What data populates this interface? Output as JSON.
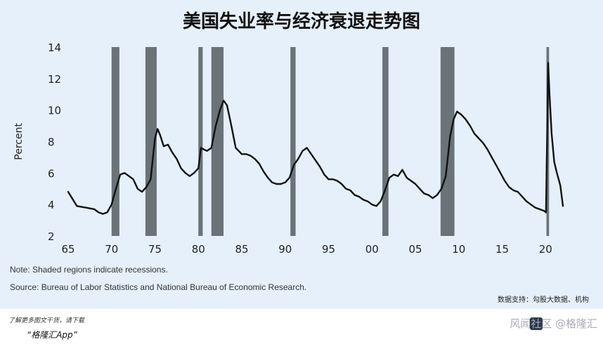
{
  "title": "美国失业率与经济衰退走势图",
  "note": "Note: Shaded regions indicate recessions.",
  "source": "Source: Bureau of Labor Statistics and National Bureau of Economic Research.",
  "data_support": "数据支持：勾股大数据、机构",
  "footer": {
    "line1": "了解更多图文干货，请下载",
    "line2": "“格隆汇App”",
    "watermark": "风闻社区 @格隆汇"
  },
  "colors": {
    "background": "#e6f0fb",
    "line": "#111111",
    "recession": "#6a7378"
  },
  "chart_data": {
    "type": "line",
    "ylabel": "Percent",
    "xlim": [
      1965,
      2022
    ],
    "ylim": [
      2,
      14
    ],
    "yticks": [
      2,
      4,
      6,
      8,
      10,
      12,
      14
    ],
    "xticks": [
      {
        "v": 1965,
        "l": "65"
      },
      {
        "v": 1970,
        "l": "70"
      },
      {
        "v": 1975,
        "l": "75"
      },
      {
        "v": 1980,
        "l": "80"
      },
      {
        "v": 1985,
        "l": "85"
      },
      {
        "v": 1990,
        "l": "90"
      },
      {
        "v": 1995,
        "l": "95"
      },
      {
        "v": 2000,
        "l": "00"
      },
      {
        "v": 2005,
        "l": "05"
      },
      {
        "v": 2010,
        "l": "10"
      },
      {
        "v": 2015,
        "l": "15"
      },
      {
        "v": 2020,
        "l": "20"
      }
    ],
    "recessions": [
      [
        1970.0,
        1970.9
      ],
      [
        1973.9,
        1975.2
      ],
      [
        1980.0,
        1980.5
      ],
      [
        1981.5,
        1982.9
      ],
      [
        1990.6,
        1991.2
      ],
      [
        2001.2,
        2001.9
      ],
      [
        2007.9,
        2009.5
      ],
      [
        2020.1,
        2020.4
      ]
    ],
    "series": [
      {
        "x": [
          1965,
          1966,
          1967,
          1968,
          1968.5,
          1969,
          1969.5,
          1970,
          1970.5,
          1971,
          1971.5,
          1972,
          1972.5,
          1973,
          1973.5,
          1974,
          1974.5,
          1975,
          1975.3,
          1975.6,
          1976,
          1976.5,
          1977,
          1977.5,
          1978,
          1978.5,
          1979,
          1979.5,
          1980,
          1980.3,
          1980.6,
          1981,
          1981.5,
          1982,
          1982.5,
          1982.9,
          1983.3,
          1983.8,
          1984.3,
          1985,
          1985.5,
          1986,
          1986.5,
          1987,
          1987.5,
          1988,
          1988.5,
          1989,
          1989.5,
          1990,
          1990.5,
          1991,
          1991.5,
          1992,
          1992.5,
          1993,
          1993.5,
          1994,
          1994.5,
          1995,
          1995.5,
          1996,
          1996.5,
          1997,
          1997.5,
          1998,
          1998.5,
          1999,
          1999.5,
          2000,
          2000.5,
          2001,
          2001.5,
          2002,
          2002.5,
          2003,
          2003.5,
          2004,
          2004.5,
          2005,
          2005.5,
          2006,
          2006.5,
          2007,
          2007.5,
          2008,
          2008.5,
          2009,
          2009.4,
          2009.8,
          2010.3,
          2010.8,
          2011.3,
          2011.8,
          2012.3,
          2012.8,
          2013.3,
          2013.8,
          2014.3,
          2014.8,
          2015.3,
          2015.8,
          2016.3,
          2016.8,
          2017.3,
          2017.8,
          2018.3,
          2018.8,
          2019.3,
          2019.8,
          2020.05,
          2020.3,
          2020.45,
          2020.7,
          2021,
          2021.3,
          2021.7,
          2022
        ],
        "values": [
          4.8,
          3.9,
          3.8,
          3.7,
          3.5,
          3.4,
          3.5,
          4.0,
          5.0,
          5.9,
          6.0,
          5.8,
          5.6,
          5.0,
          4.8,
          5.1,
          5.6,
          8.2,
          8.8,
          8.4,
          7.7,
          7.8,
          7.3,
          6.9,
          6.3,
          6.0,
          5.8,
          6.0,
          6.3,
          7.6,
          7.5,
          7.4,
          7.6,
          9.0,
          10.0,
          10.6,
          10.3,
          9.0,
          7.6,
          7.2,
          7.2,
          7.1,
          6.9,
          6.6,
          6.1,
          5.7,
          5.4,
          5.3,
          5.3,
          5.4,
          5.7,
          6.5,
          6.9,
          7.4,
          7.6,
          7.2,
          6.8,
          6.4,
          5.9,
          5.6,
          5.6,
          5.5,
          5.3,
          5.0,
          4.9,
          4.6,
          4.5,
          4.3,
          4.2,
          4.0,
          3.9,
          4.2,
          4.9,
          5.7,
          5.9,
          5.8,
          6.2,
          5.7,
          5.5,
          5.3,
          5.0,
          4.7,
          4.6,
          4.4,
          4.6,
          5.0,
          5.8,
          8.3,
          9.4,
          9.9,
          9.7,
          9.4,
          9.0,
          8.5,
          8.2,
          7.9,
          7.5,
          7.0,
          6.5,
          6.0,
          5.5,
          5.1,
          4.9,
          4.8,
          4.5,
          4.2,
          4.0,
          3.8,
          3.7,
          3.6,
          3.5,
          13.0,
          11.0,
          8.5,
          6.7,
          6.0,
          5.2,
          3.9
        ]
      }
    ]
  }
}
